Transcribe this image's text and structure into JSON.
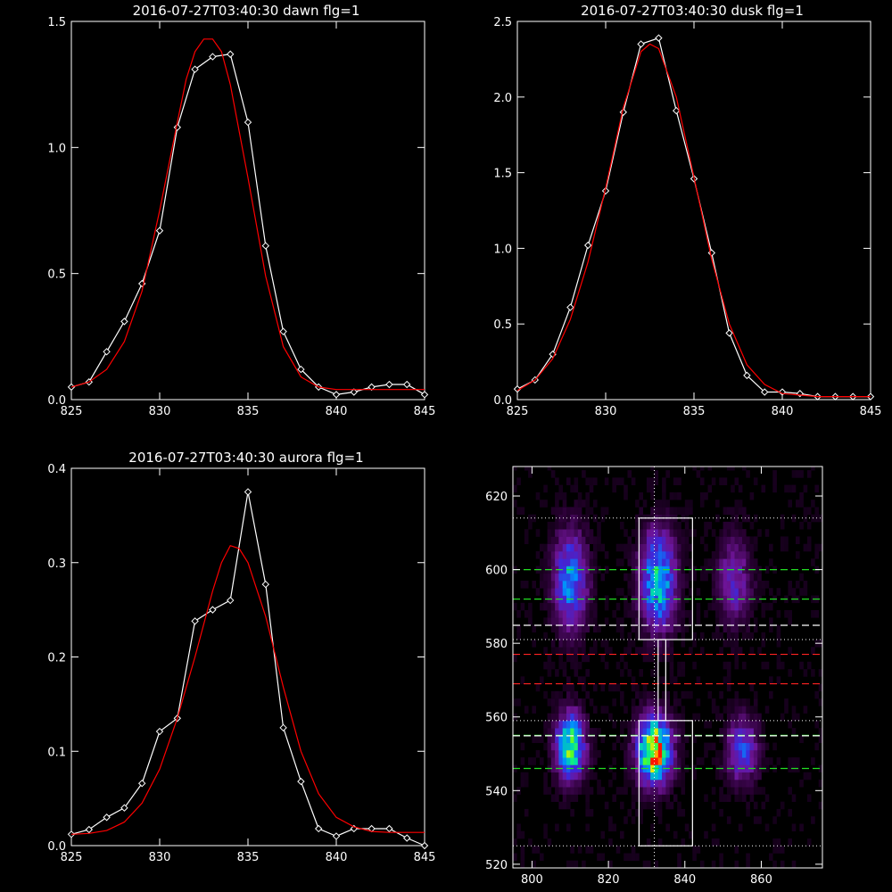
{
  "colors": {
    "background": "#000000",
    "data_line": "#ffffff",
    "fit_line": "#ff0000",
    "axis": "#ffffff",
    "green_dash": "#22dd22",
    "red_dash": "#ff2222",
    "white_dash": "#ffffff"
  },
  "chart_data": [
    {
      "id": "dawn",
      "type": "line",
      "title": "2016-07-27T03:40:30 dawn flg=1",
      "xlim": [
        825,
        845
      ],
      "ylim": [
        0,
        1.5
      ],
      "xticks": [
        825,
        830,
        835,
        840,
        845
      ],
      "yticks": [
        0.0,
        0.5,
        1.0,
        1.5
      ],
      "xtick_labels": [
        "825",
        "830",
        "835",
        "840",
        "845"
      ],
      "ytick_labels": [
        "0.0",
        "0.5",
        "1.0",
        "1.5"
      ],
      "series": [
        {
          "kind": "data",
          "marker": "diamond",
          "x": [
            825,
            826,
            827,
            828,
            829,
            830,
            831,
            832,
            833,
            834,
            835,
            836,
            837,
            838,
            839,
            840,
            841,
            842,
            843,
            844,
            845
          ],
          "y": [
            0.05,
            0.07,
            0.19,
            0.31,
            0.46,
            0.67,
            1.08,
            1.31,
            1.36,
            1.37,
            1.1,
            0.61,
            0.27,
            0.12,
            0.05,
            0.02,
            0.03,
            0.05,
            0.06,
            0.06,
            0.02
          ]
        },
        {
          "kind": "fit",
          "x": [
            825,
            826,
            827,
            828,
            829,
            830,
            831,
            831.5,
            832,
            832.5,
            833,
            833.5,
            834,
            835,
            836,
            837,
            838,
            839,
            840,
            841,
            842,
            843,
            844,
            845
          ],
          "y": [
            0.05,
            0.07,
            0.12,
            0.23,
            0.43,
            0.75,
            1.1,
            1.27,
            1.38,
            1.43,
            1.43,
            1.38,
            1.25,
            0.88,
            0.49,
            0.21,
            0.09,
            0.05,
            0.04,
            0.04,
            0.04,
            0.04,
            0.04,
            0.04
          ]
        }
      ]
    },
    {
      "id": "dusk",
      "type": "line",
      "title": "2016-07-27T03:40:30 dusk flg=1",
      "xlim": [
        825,
        845
      ],
      "ylim": [
        0,
        2.5
      ],
      "xticks": [
        825,
        830,
        835,
        840,
        845
      ],
      "yticks": [
        0.0,
        0.5,
        1.0,
        1.5,
        2.0,
        2.5
      ],
      "xtick_labels": [
        "825",
        "830",
        "835",
        "840",
        "845"
      ],
      "ytick_labels": [
        "0.0",
        "0.5",
        "1.0",
        "1.5",
        "2.0",
        "2.5"
      ],
      "series": [
        {
          "kind": "data",
          "marker": "diamond",
          "x": [
            825,
            826,
            827,
            828,
            829,
            830,
            831,
            832,
            833,
            834,
            835,
            836,
            837,
            838,
            839,
            840,
            841,
            842,
            843,
            844,
            845
          ],
          "y": [
            0.07,
            0.13,
            0.3,
            0.61,
            1.02,
            1.38,
            1.9,
            2.35,
            2.39,
            1.91,
            1.46,
            0.97,
            0.44,
            0.16,
            0.05,
            0.05,
            0.04,
            0.02,
            0.02,
            0.02,
            0.02
          ]
        },
        {
          "kind": "fit",
          "x": [
            825,
            826,
            827,
            828,
            829,
            830,
            831,
            832,
            832.5,
            833,
            834,
            835,
            836,
            837,
            838,
            839,
            840,
            841,
            842,
            843,
            844,
            845
          ],
          "y": [
            0.06,
            0.13,
            0.27,
            0.53,
            0.91,
            1.4,
            1.93,
            2.3,
            2.35,
            2.32,
            2.0,
            1.47,
            0.93,
            0.5,
            0.23,
            0.1,
            0.04,
            0.03,
            0.02,
            0.02,
            0.02,
            0.02
          ]
        }
      ]
    },
    {
      "id": "aurora",
      "type": "line",
      "title": "2016-07-27T03:40:30 aurora flg=1",
      "xlim": [
        825,
        845
      ],
      "ylim": [
        0,
        0.4
      ],
      "xticks": [
        825,
        830,
        835,
        840,
        845
      ],
      "yticks": [
        0.0,
        0.1,
        0.2,
        0.3,
        0.4
      ],
      "xtick_labels": [
        "825",
        "830",
        "835",
        "840",
        "845"
      ],
      "ytick_labels": [
        "0.0",
        "0.1",
        "0.2",
        "0.3",
        "0.4"
      ],
      "series": [
        {
          "kind": "data",
          "marker": "diamond",
          "x": [
            825,
            826,
            827,
            828,
            829,
            830,
            831,
            832,
            833,
            834,
            835,
            836,
            837,
            838,
            839,
            840,
            841,
            842,
            843,
            844,
            845
          ],
          "y": [
            0.012,
            0.017,
            0.03,
            0.04,
            0.066,
            0.121,
            0.135,
            0.238,
            0.25,
            0.26,
            0.375,
            0.277,
            0.125,
            0.068,
            0.018,
            0.01,
            0.018,
            0.018,
            0.018,
            0.008,
            0.0
          ]
        },
        {
          "kind": "fit",
          "x": [
            825,
            826,
            827,
            828,
            829,
            830,
            831,
            832,
            833,
            833.5,
            834,
            834.5,
            835,
            836,
            837,
            838,
            839,
            840,
            841,
            842,
            843,
            844,
            845
          ],
          "y": [
            0.012,
            0.013,
            0.016,
            0.025,
            0.045,
            0.081,
            0.135,
            0.2,
            0.27,
            0.3,
            0.318,
            0.315,
            0.3,
            0.243,
            0.168,
            0.1,
            0.055,
            0.03,
            0.02,
            0.015,
            0.014,
            0.014,
            0.014
          ]
        }
      ]
    },
    {
      "id": "image",
      "type": "heatmap",
      "xlim": [
        795,
        876
      ],
      "ylim": [
        519,
        628
      ],
      "xticks": [
        800,
        820,
        840,
        860
      ],
      "yticks": [
        520,
        540,
        560,
        580,
        600,
        620
      ],
      "xtick_labels": [
        "800",
        "820",
        "840",
        "860"
      ],
      "ytick_labels": [
        "520",
        "540",
        "560",
        "580",
        "600",
        "620"
      ],
      "blobs": [
        {
          "x": 810,
          "y": 597,
          "sx": 3.0,
          "sy": 9,
          "amp": 0.5
        },
        {
          "x": 833,
          "y": 597,
          "sx": 3.2,
          "sy": 9,
          "amp": 0.62
        },
        {
          "x": 853,
          "y": 597,
          "sx": 3.0,
          "sy": 8,
          "amp": 0.3
        },
        {
          "x": 810,
          "y": 552,
          "sx": 2.6,
          "sy": 6,
          "amp": 0.75
        },
        {
          "x": 832,
          "y": 551,
          "sx": 3.0,
          "sy": 6,
          "amp": 1.0
        },
        {
          "x": 855,
          "y": 551,
          "sx": 2.8,
          "sy": 6,
          "amp": 0.4
        }
      ],
      "vertical_dotted_x": 832,
      "dotted_hlines": [
        614,
        581,
        559,
        525
      ],
      "green_dashed_hlines": [
        600,
        592,
        555,
        546
      ],
      "white_dashed_hlines": [
        585,
        555
      ],
      "red_dashed_hlines": [
        577,
        569
      ],
      "boxes": [
        {
          "x1": 828,
          "x2": 842,
          "y1": 581,
          "y2": 614
        },
        {
          "x1": 833,
          "x2": 835,
          "y1": 559,
          "y2": 581
        },
        {
          "x1": 828,
          "x2": 842,
          "y1": 525,
          "y2": 559
        }
      ]
    }
  ]
}
